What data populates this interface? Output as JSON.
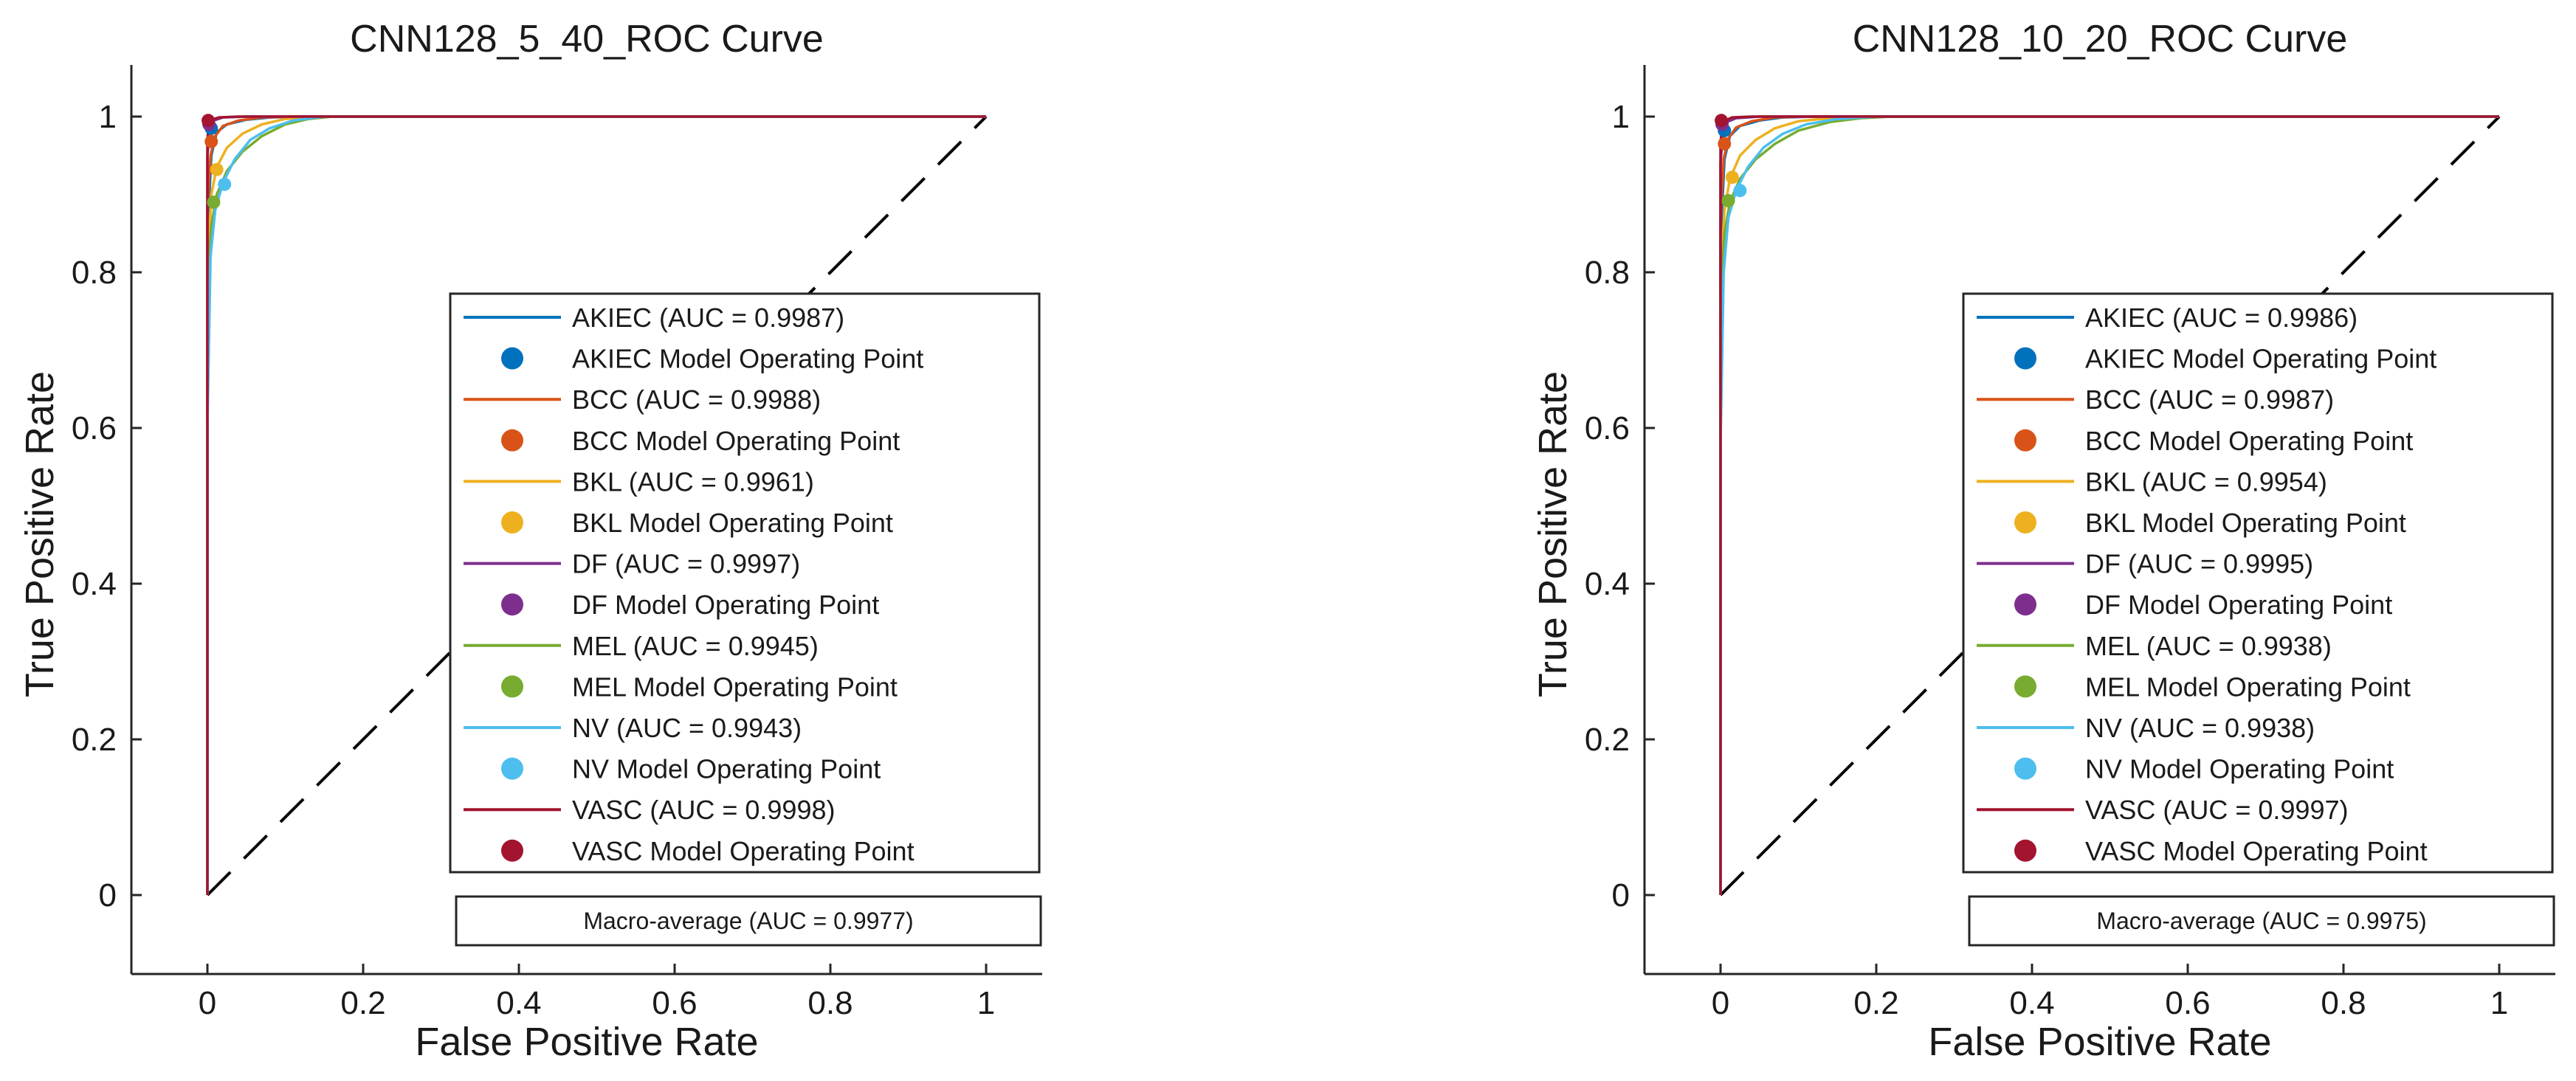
{
  "chart_data": [
    {
      "type": "line",
      "title": "CNN128_5_40_ROC Curve",
      "xlabel": "False Positive Rate",
      "ylabel": "True Positive Rate",
      "xlim": [
        -0.1,
        1.07
      ],
      "ylim": [
        -0.1,
        1.07
      ],
      "xticks": [
        0,
        0.2,
        0.4,
        0.6,
        0.8,
        1
      ],
      "xtick_labels": [
        "0",
        "0.2",
        "0.4",
        "0.6",
        "0.8",
        "1"
      ],
      "yticks": [
        0,
        0.2,
        0.4,
        0.6,
        0.8,
        1
      ],
      "ytick_labels": [
        "0",
        "0.2",
        "0.4",
        "0.6",
        "0.8",
        "1"
      ],
      "grid": false,
      "legend_position": "lower-right",
      "series": [
        {
          "name": "AKIEC",
          "legend": "AKIEC (AUC = 0.9987)",
          "point_legend": "AKIEC Model Operating Point",
          "color": "#0072BD",
          "x": [
            0,
            0,
            0.005,
            0.012,
            0.025,
            0.05,
            0.08,
            0.12,
            1
          ],
          "y": [
            0,
            0.85,
            0.95,
            0.98,
            0.99,
            0.996,
            0.999,
            1,
            1
          ],
          "operating_point": [
            0.005,
            0.985
          ]
        },
        {
          "name": "BCC",
          "legend": "BCC (AUC = 0.9988)",
          "point_legend": "BCC Model Operating Point",
          "color": "#D95319",
          "x": [
            0,
            0,
            0.004,
            0.01,
            0.02,
            0.04,
            0.07,
            0.11,
            1
          ],
          "y": [
            0,
            0.88,
            0.95,
            0.975,
            0.988,
            0.995,
            0.999,
            1,
            1
          ],
          "operating_point": [
            0.005,
            0.968
          ]
        },
        {
          "name": "BKL",
          "legend": "BKL (AUC = 0.9961)",
          "point_legend": "BKL Model Operating Point",
          "color": "#EDB120",
          "x": [
            0,
            0,
            0.005,
            0.012,
            0.025,
            0.045,
            0.07,
            0.1,
            0.14,
            1
          ],
          "y": [
            0,
            0.8,
            0.9,
            0.935,
            0.96,
            0.978,
            0.99,
            0.997,
            1,
            1
          ],
          "operating_point": [
            0.012,
            0.932
          ]
        },
        {
          "name": "DF",
          "legend": "DF (AUC = 0.9997)",
          "point_legend": "DF Model Operating Point",
          "color": "#7E2F8E",
          "x": [
            0,
            0,
            0.003,
            0.008,
            0.02,
            0.05,
            1
          ],
          "y": [
            0,
            0.95,
            0.985,
            0.995,
            0.999,
            1,
            1
          ],
          "operating_point": [
            0.002,
            0.99
          ]
        },
        {
          "name": "MEL",
          "legend": "MEL (AUC = 0.9945)",
          "point_legend": "MEL Model Operating Point",
          "color": "#77AC30",
          "x": [
            0,
            0,
            0.005,
            0.012,
            0.025,
            0.045,
            0.07,
            0.1,
            0.13,
            0.16,
            1
          ],
          "y": [
            0,
            0.78,
            0.86,
            0.9,
            0.93,
            0.955,
            0.975,
            0.99,
            0.997,
            1,
            1
          ],
          "operating_point": [
            0.008,
            0.89
          ]
        },
        {
          "name": "NV",
          "legend": "NV (AUC = 0.9943)",
          "point_legend": "NV Model Operating Point",
          "color": "#4DBEEE",
          "x": [
            0,
            0,
            0.004,
            0.01,
            0.02,
            0.035,
            0.055,
            0.08,
            0.11,
            0.15,
            1
          ],
          "y": [
            0,
            0.6,
            0.82,
            0.88,
            0.915,
            0.945,
            0.97,
            0.985,
            0.995,
            1,
            1
          ],
          "operating_point": [
            0.022,
            0.913
          ]
        },
        {
          "name": "VASC",
          "legend": "VASC (AUC = 0.9998)",
          "point_legend": "VASC Model Operating Point",
          "color": "#A2142F",
          "x": [
            0,
            0,
            0.002,
            0.006,
            0.015,
            0.04,
            1
          ],
          "y": [
            0,
            0.97,
            0.99,
            0.996,
            0.999,
            1,
            1
          ],
          "operating_point": [
            0.001,
            0.995
          ]
        }
      ],
      "reference_line": {
        "x": [
          0,
          1
        ],
        "y": [
          0,
          1
        ],
        "style": "dashed",
        "color": "#000000"
      },
      "annotation": "Macro-average (AUC = 0.9977)"
    },
    {
      "type": "line",
      "title": "CNN128_10_20_ROC Curve",
      "xlabel": "False Positive Rate",
      "ylabel": "True Positive Rate",
      "xlim": [
        -0.1,
        1.07
      ],
      "ylim": [
        -0.1,
        1.07
      ],
      "xticks": [
        0,
        0.2,
        0.4,
        0.6,
        0.8,
        1
      ],
      "xtick_labels": [
        "0",
        "0.2",
        "0.4",
        "0.6",
        "0.8",
        "1"
      ],
      "yticks": [
        0,
        0.2,
        0.4,
        0.6,
        0.8,
        1
      ],
      "ytick_labels": [
        "0",
        "0.2",
        "0.4",
        "0.6",
        "0.8",
        "1"
      ],
      "grid": false,
      "legend_position": "lower-right",
      "series": [
        {
          "name": "AKIEC",
          "legend": "AKIEC (AUC = 0.9986)",
          "point_legend": "AKIEC Model Operating Point",
          "color": "#0072BD",
          "x": [
            0,
            0,
            0.005,
            0.012,
            0.025,
            0.05,
            0.08,
            0.12,
            1
          ],
          "y": [
            0,
            0.84,
            0.945,
            0.975,
            0.988,
            0.995,
            0.999,
            1,
            1
          ],
          "operating_point": [
            0.005,
            0.982
          ]
        },
        {
          "name": "BCC",
          "legend": "BCC (AUC = 0.9987)",
          "point_legend": "BCC Model Operating Point",
          "color": "#D95319",
          "x": [
            0,
            0,
            0.004,
            0.01,
            0.02,
            0.04,
            0.07,
            0.11,
            1
          ],
          "y": [
            0,
            0.87,
            0.945,
            0.972,
            0.986,
            0.994,
            0.999,
            1,
            1
          ],
          "operating_point": [
            0.005,
            0.965
          ]
        },
        {
          "name": "BKL",
          "legend": "BKL (AUC = 0.9954)",
          "point_legend": "BKL Model Operating Point",
          "color": "#EDB120",
          "x": [
            0,
            0,
            0.005,
            0.012,
            0.025,
            0.045,
            0.07,
            0.1,
            0.14,
            0.18,
            1
          ],
          "y": [
            0,
            0.78,
            0.88,
            0.92,
            0.95,
            0.97,
            0.985,
            0.994,
            0.998,
            1,
            1
          ],
          "operating_point": [
            0.015,
            0.922
          ]
        },
        {
          "name": "DF",
          "legend": "DF (AUC = 0.9995)",
          "point_legend": "DF Model Operating Point",
          "color": "#7E2F8E",
          "x": [
            0,
            0,
            0.003,
            0.008,
            0.02,
            0.05,
            1
          ],
          "y": [
            0,
            0.94,
            0.98,
            0.993,
            0.998,
            1,
            1
          ],
          "operating_point": [
            0.002,
            0.99
          ]
        },
        {
          "name": "MEL",
          "legend": "MEL (AUC = 0.9938)",
          "point_legend": "MEL Model Operating Point",
          "color": "#77AC30",
          "x": [
            0,
            0,
            0.005,
            0.012,
            0.025,
            0.045,
            0.07,
            0.1,
            0.14,
            0.18,
            0.22,
            1
          ],
          "y": [
            0,
            0.76,
            0.85,
            0.89,
            0.92,
            0.945,
            0.965,
            0.982,
            0.993,
            0.998,
            1,
            1
          ],
          "operating_point": [
            0.01,
            0.892
          ]
        },
        {
          "name": "NV",
          "legend": "NV (AUC = 0.9938)",
          "point_legend": "NV Model Operating Point",
          "color": "#4DBEEE",
          "x": [
            0,
            0,
            0.004,
            0.01,
            0.02,
            0.035,
            0.055,
            0.08,
            0.11,
            0.15,
            0.2,
            1
          ],
          "y": [
            0,
            0.58,
            0.8,
            0.87,
            0.905,
            0.935,
            0.96,
            0.978,
            0.99,
            0.997,
            1,
            1
          ],
          "operating_point": [
            0.025,
            0.905
          ]
        },
        {
          "name": "VASC",
          "legend": "VASC (AUC = 0.9997)",
          "point_legend": "VASC Model Operating Point",
          "color": "#A2142F",
          "x": [
            0,
            0,
            0.002,
            0.006,
            0.015,
            0.04,
            1
          ],
          "y": [
            0,
            0.965,
            0.988,
            0.995,
            0.999,
            1,
            1
          ],
          "operating_point": [
            0.001,
            0.995
          ]
        }
      ],
      "reference_line": {
        "x": [
          0,
          1
        ],
        "y": [
          0,
          1
        ],
        "style": "dashed",
        "color": "#000000"
      },
      "annotation": "Macro-average (AUC = 0.9975)"
    }
  ]
}
